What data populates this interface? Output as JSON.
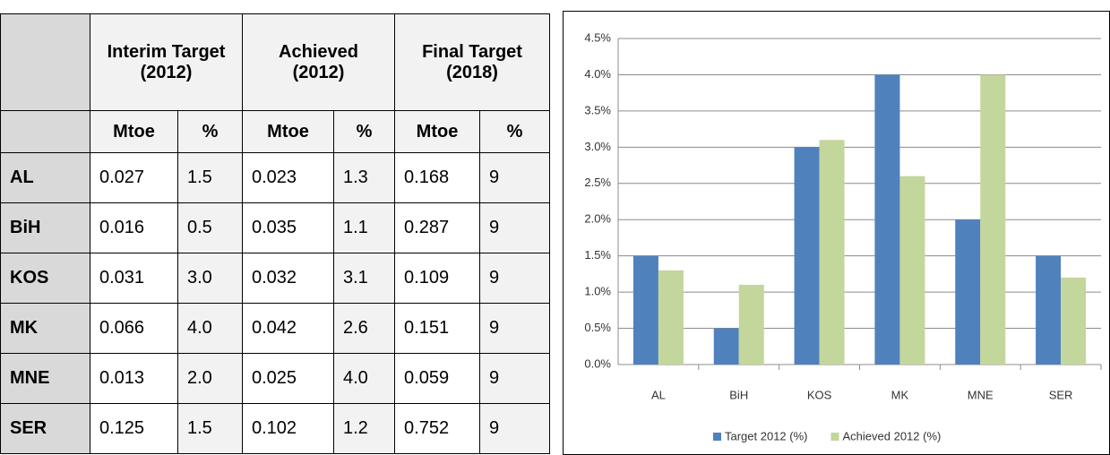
{
  "table": {
    "column_groups": [
      "Interim Target (2012)",
      "Achieved (2012)",
      "Final Target (2018)"
    ],
    "subheaders": [
      "Mtoe",
      "%",
      "Mtoe",
      "%",
      "Mtoe",
      "%"
    ],
    "rows": [
      [
        "AL",
        "0.027",
        "1.5",
        "0.023",
        "1.3",
        "0.168",
        "9"
      ],
      [
        "BiH",
        "0.016",
        "0.5",
        "0.035",
        "1.1",
        "0.287",
        "9"
      ],
      [
        "KOS",
        "0.031",
        "3.0",
        "0.032",
        "3.1",
        "0.109",
        "9"
      ],
      [
        "MK",
        "0.066",
        "4.0",
        "0.042",
        "2.6",
        "0.151",
        "9"
      ],
      [
        "MNE",
        "0.013",
        "2.0",
        "0.025",
        "4.0",
        "0.059",
        "9"
      ],
      [
        "SER",
        "0.125",
        "1.5",
        "0.102",
        "1.2",
        "0.752",
        "9"
      ]
    ]
  },
  "chart_data": {
    "type": "bar",
    "categories": [
      "AL",
      "BiH",
      "KOS",
      "MK",
      "MNE",
      "SER"
    ],
    "series": [
      {
        "name": "Target 2012 (%)",
        "color": "#4f81bd",
        "values": [
          1.5,
          0.5,
          3.0,
          4.0,
          2.0,
          1.5
        ]
      },
      {
        "name": "Achieved 2012 (%)",
        "color": "#c3d69b",
        "values": [
          1.3,
          1.1,
          3.1,
          2.6,
          4.0,
          1.2
        ]
      }
    ],
    "ylim": [
      0,
      4.5
    ],
    "yticks": [
      {
        "value": 0,
        "label": "0.0%"
      },
      {
        "value": 0.5,
        "label": "0.5%"
      },
      {
        "value": 1,
        "label": "1.0%"
      },
      {
        "value": 1.5,
        "label": "1.5%"
      },
      {
        "value": 2,
        "label": "2.0%"
      },
      {
        "value": 2.5,
        "label": "2.5%"
      },
      {
        "value": 3,
        "label": "3.0%"
      },
      {
        "value": 3.5,
        "label": "3.5%"
      },
      {
        "value": 4,
        "label": "4.0%"
      },
      {
        "value": 4.5,
        "label": "4.5%"
      }
    ],
    "grid": true,
    "legend": "bottom"
  }
}
